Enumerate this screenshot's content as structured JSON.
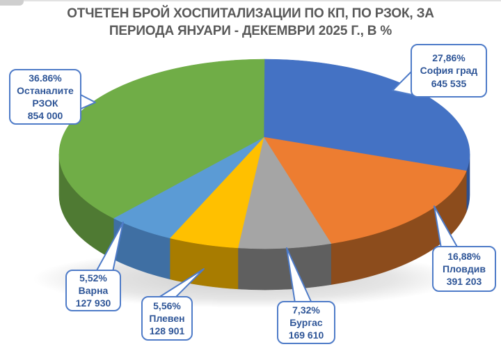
{
  "title": {
    "line1": "ОТЧЕТЕН БРОЙ ХОСПИТАЛИЗАЦИИ ПО КП, ПО РЗОК, ЗА",
    "line2": "ПЕРИОДА ЯНУАРИ - ДЕКЕМВРИ 2025 Г., В %"
  },
  "colors": {
    "background": "#FFFFFF",
    "title_text": "#595959",
    "callout_border": "#4E7BC8",
    "callout_text": "#2E5597"
  },
  "chart_data": {
    "type": "pie",
    "style": "3d",
    "title": "ОТЧЕТЕН БРОЙ ХОСПИТАЛИЗАЦИИ ПО КП, ПО РЗОК, ЗА ПЕРИОДА ЯНУАРИ - ДЕКЕМВРИ 2025 Г., В %",
    "unit": "%",
    "direction": "clockwise",
    "start_angle_deg": 0,
    "legend": "none",
    "slices": [
      {
        "id": "sofia-grad",
        "name": "София град",
        "percent": 27.86,
        "percent_label": "27,86%",
        "value": 645535,
        "value_label": "645 535",
        "color": "#4472C4",
        "side_color": "#2E4F8E"
      },
      {
        "id": "plovdiv",
        "name": "Пловдив",
        "percent": 16.88,
        "percent_label": "16,88%",
        "value": 391203,
        "value_label": "391 203",
        "color": "#ED7D31",
        "side_color": "#8C4C1C"
      },
      {
        "id": "burgas",
        "name": "Бургас",
        "percent": 7.32,
        "percent_label": "7,32%",
        "value": 169610,
        "value_label": "169 610",
        "color": "#A5A5A5",
        "side_color": "#5F5F5F"
      },
      {
        "id": "pleven",
        "name": "Плевен",
        "percent": 5.56,
        "percent_label": "5,56%",
        "value": 128901,
        "value_label": "128 901",
        "color": "#FFC000",
        "side_color": "#A87C00"
      },
      {
        "id": "varna",
        "name": "Варна",
        "percent": 5.52,
        "percent_label": "5,52%",
        "value": 127930,
        "value_label": "127 930",
        "color": "#5B9BD5",
        "side_color": "#3F6FA3"
      },
      {
        "id": "ostanalite-rzok",
        "name": "Останалите РЗОК",
        "percent": 36.86,
        "percent_label": "36.86%",
        "value": 854000,
        "value_label": "854 000",
        "color": "#70AD47",
        "side_color": "#4F7A33"
      }
    ]
  }
}
